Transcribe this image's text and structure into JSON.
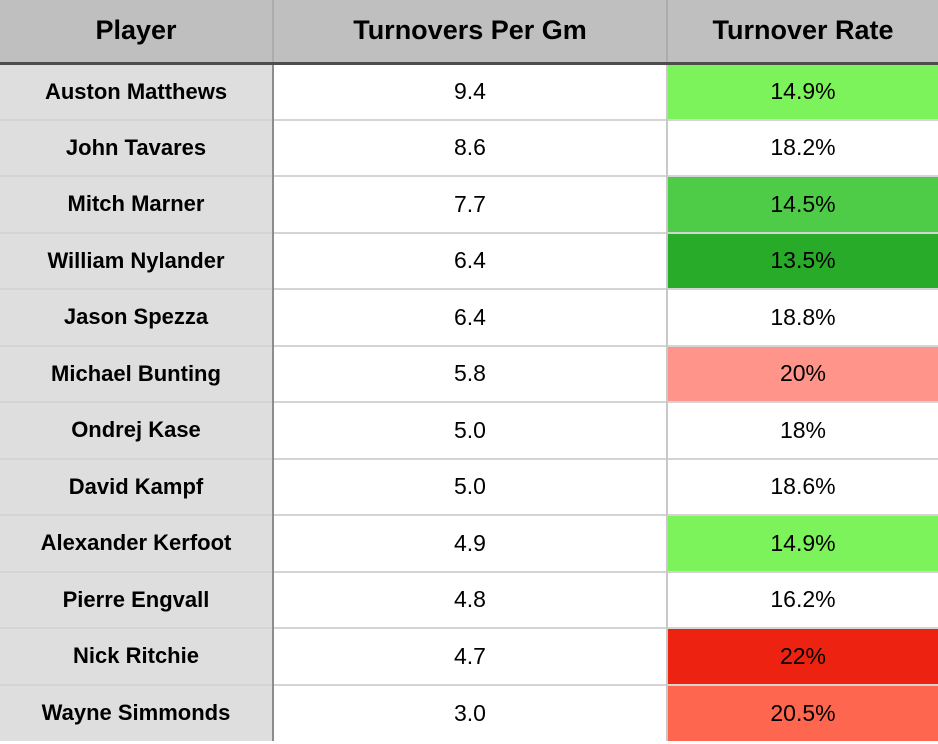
{
  "chart_data": {
    "type": "table",
    "title": "",
    "columns": [
      "Player",
      "Turnovers Per Gm",
      "Turnover Rate"
    ],
    "rows": [
      {
        "player": "Auston Matthews",
        "turnovers_per_gm": "9.4",
        "turnover_rate": "14.9%",
        "rate_bg": "#7cf35b"
      },
      {
        "player": "John Tavares",
        "turnovers_per_gm": "8.6",
        "turnover_rate": "18.2%",
        "rate_bg": "#ffffff"
      },
      {
        "player": "Mitch Marner",
        "turnovers_per_gm": "7.7",
        "turnover_rate": "14.5%",
        "rate_bg": "#4ecc47"
      },
      {
        "player": "William Nylander",
        "turnovers_per_gm": "6.4",
        "turnover_rate": "13.5%",
        "rate_bg": "#28ab28"
      },
      {
        "player": "Jason Spezza",
        "turnovers_per_gm": "6.4",
        "turnover_rate": "18.8%",
        "rate_bg": "#ffffff"
      },
      {
        "player": "Michael Bunting",
        "turnovers_per_gm": "5.8",
        "turnover_rate": "20%",
        "rate_bg": "#ff958a"
      },
      {
        "player": "Ondrej Kase",
        "turnovers_per_gm": "5.0",
        "turnover_rate": "18%",
        "rate_bg": "#ffffff"
      },
      {
        "player": "David Kampf",
        "turnovers_per_gm": "5.0",
        "turnover_rate": "18.6%",
        "rate_bg": "#ffffff"
      },
      {
        "player": "Alexander Kerfoot",
        "turnovers_per_gm": "4.9",
        "turnover_rate": "14.9%",
        "rate_bg": "#7cf35b"
      },
      {
        "player": "Pierre Engvall",
        "turnovers_per_gm": "4.8",
        "turnover_rate": "16.2%",
        "rate_bg": "#ffffff"
      },
      {
        "player": "Nick Ritchie",
        "turnovers_per_gm": "4.7",
        "turnover_rate": "22%",
        "rate_bg": "#ee2211"
      },
      {
        "player": "Wayne Simmonds",
        "turnovers_per_gm": "3.0",
        "turnover_rate": "20.5%",
        "rate_bg": "#ff6650"
      }
    ]
  },
  "header": {
    "col_player": "Player",
    "col_turnovers": "Turnovers Per Gm",
    "col_rate": "Turnover Rate"
  },
  "colors": {
    "header_bg": "#bfbfbf",
    "player_col_bg": "#dedede",
    "row_border": "#d4d4d4",
    "header_underline": "#4d4d4d",
    "green_bright": "#7cf35b",
    "green_medium": "#4ecc47",
    "green_dark": "#28ab28",
    "red_light": "#ff958a",
    "red_strong": "#ee2211",
    "red_medium": "#ff6650"
  }
}
